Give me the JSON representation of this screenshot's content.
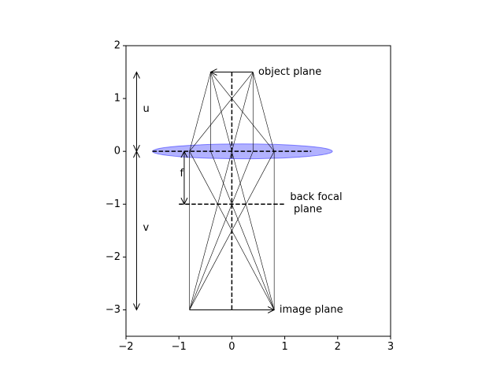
{
  "chart_data": {
    "type": "line",
    "title": "",
    "xlabel": "",
    "ylabel": "",
    "xlim": [
      -2,
      3
    ],
    "ylim": [
      -3.5,
      2
    ],
    "xticks": [
      -2,
      -1,
      0,
      1,
      2,
      3
    ],
    "yticks": [
      2,
      1,
      0,
      -1,
      -2,
      -3
    ],
    "xtick_labels": [
      "−2",
      "−1",
      "0",
      "1",
      "2",
      "3"
    ],
    "ytick_labels": [
      "2",
      "1",
      "0",
      "−1",
      "−2",
      "−3"
    ],
    "grid": false,
    "colors": {
      "lens_fill": "#0000ff",
      "lens_opacity": 0.3,
      "line": "#000000"
    },
    "lens": {
      "center": [
        0.2,
        0
      ],
      "width": 3.4,
      "height": 0.28
    },
    "object_arrow": {
      "from": [
        0.4,
        1.5
      ],
      "to": [
        -0.4,
        1.5
      ]
    },
    "image_arrow": {
      "from": [
        -0.8,
        -3
      ],
      "to": [
        0.8,
        -3
      ]
    },
    "optical_axis": {
      "x": 0,
      "y_range": [
        -3,
        1.5
      ]
    },
    "lens_plane": {
      "y": 0,
      "x_range": [
        -1.5,
        1.5
      ]
    },
    "back_focal_plane": {
      "y": -1,
      "x_range": [
        -1,
        1
      ]
    },
    "rays": [
      [
        [
          -0.4,
          1.5
        ],
        [
          -0.8,
          0
        ],
        [
          0.8,
          -3
        ]
      ],
      [
        [
          -0.4,
          1.5
        ],
        [
          -0.4,
          0
        ],
        [
          0.8,
          -3
        ]
      ],
      [
        [
          -0.4,
          1.5
        ],
        [
          0,
          0
        ],
        [
          0.8,
          -3
        ]
      ],
      [
        [
          -0.4,
          1.5
        ],
        [
          0.8,
          0
        ],
        [
          0.8,
          -3
        ]
      ],
      [
        [
          0.4,
          1.5
        ],
        [
          -0.8,
          0
        ],
        [
          -0.8,
          -3
        ]
      ],
      [
        [
          0.4,
          1.5
        ],
        [
          0,
          0
        ],
        [
          -0.8,
          -3
        ]
      ],
      [
        [
          0.4,
          1.5
        ],
        [
          0.4,
          0
        ],
        [
          -0.8,
          -3
        ]
      ],
      [
        [
          0.4,
          1.5
        ],
        [
          0.8,
          0
        ],
        [
          -0.8,
          -3
        ]
      ]
    ],
    "dimension_arrows": [
      {
        "name": "u",
        "x": -1.8,
        "from": 1.5,
        "to": 0
      },
      {
        "name": "v",
        "x": -1.8,
        "from": 0,
        "to": -3
      },
      {
        "name": "f",
        "x": -0.9,
        "from": 0,
        "to": -1
      }
    ],
    "annotations": [
      {
        "text": "object plane",
        "x": 0.5,
        "y": 1.5
      },
      {
        "text": "back focal",
        "x": 1.1,
        "y": -0.87
      },
      {
        "text": "plane",
        "x": 1.17,
        "y": -1.1
      },
      {
        "text": "image plane",
        "x": 0.9,
        "y": -3.0
      },
      {
        "text": "u",
        "x": -1.68,
        "y": 0.8
      },
      {
        "text": "v",
        "x": -1.68,
        "y": -1.45
      },
      {
        "text": "f",
        "x": -0.98,
        "y": -0.42
      }
    ]
  }
}
